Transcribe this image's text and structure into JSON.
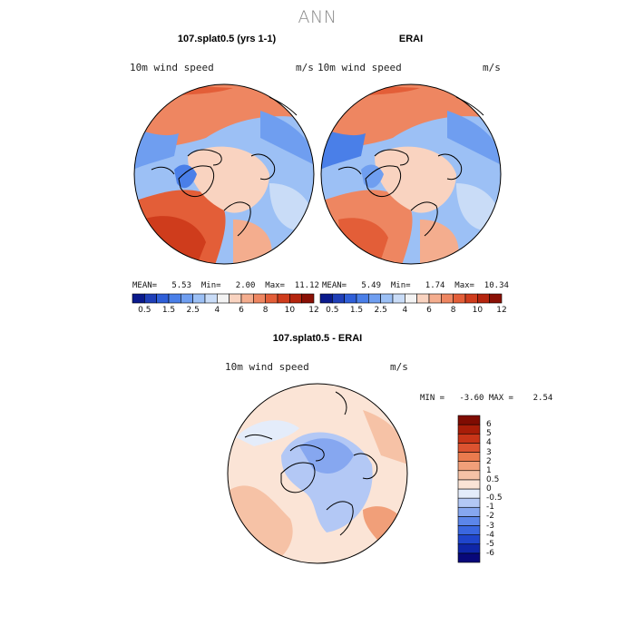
{
  "main_title": "ANN",
  "panels": [
    {
      "title": "107.splat0.5 (yrs 1-1)",
      "field_label": "10m wind speed",
      "units": "m/s",
      "stats": "MEAN=   5.53  Min=   2.00  Max=  11.12"
    },
    {
      "title": "ERAI",
      "field_label": "10m wind speed",
      "units": "m/s",
      "stats": "MEAN=   5.49  Min=   1.74  Max=  10.34"
    }
  ],
  "diff_panel": {
    "title": "107.splat0.5 - ERAI",
    "field_label": "10m wind speed",
    "units": "m/s",
    "stats": "MIN =   -3.60 MAX =    2.54"
  },
  "colorbar_top": {
    "colors": [
      "#0a1a8c",
      "#1f3fb8",
      "#2f5fd8",
      "#4a7fe8",
      "#6f9ef0",
      "#9cc0f5",
      "#c9dcf7",
      "#f3f3f3",
      "#f9d3c0",
      "#f4ad8e",
      "#ee8661",
      "#e35e38",
      "#cf3c1c",
      "#b5250e",
      "#8a1005"
    ],
    "tick_labels": [
      "0.5",
      "1.5",
      "2.5",
      "4",
      "6",
      "8",
      "10",
      "12"
    ]
  },
  "colorbar_diff": {
    "colors": [
      "#08087a",
      "#0f26a8",
      "#1f45cc",
      "#3a67e0",
      "#5c86ea",
      "#86a7f0",
      "#b3c8f5",
      "#e4ecfa",
      "#fbe4d6",
      "#f6c2a6",
      "#f19f79",
      "#ea7b4e",
      "#dc5330",
      "#c83518",
      "#a81d08",
      "#7f0c02"
    ],
    "tick_labels": [
      "6",
      "5",
      "4",
      "3",
      "2",
      "1",
      "0.5",
      "0",
      "-0.5",
      "-1",
      "-2",
      "-3",
      "-4",
      "-5",
      "-6"
    ]
  }
}
